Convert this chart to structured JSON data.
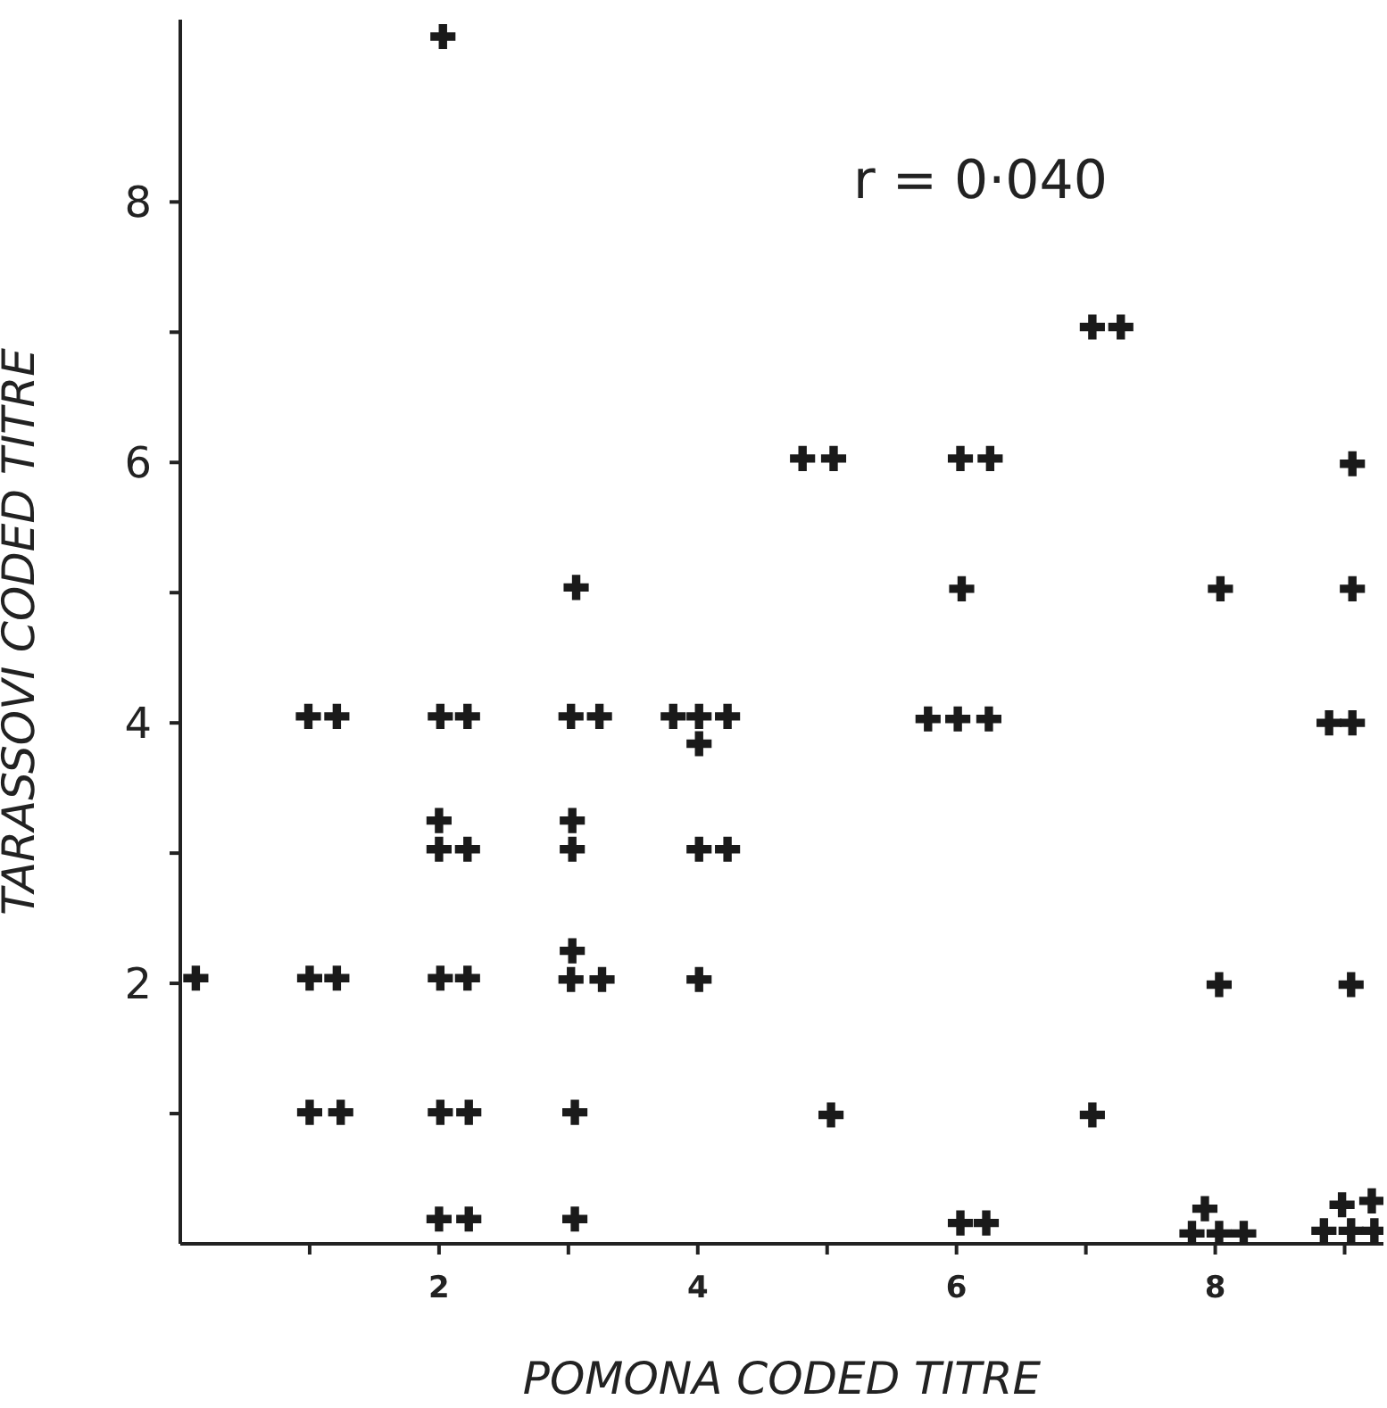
{
  "chart_data": {
    "type": "scatter",
    "xlabel": "POMONA CODED TITRE",
    "ylabel": "TARASSOVI CODED TITRE",
    "annotations": [
      "r = 0·040"
    ],
    "marker": "cross",
    "xlim": [
      0,
      9.3
    ],
    "ylim": [
      0,
      9.4
    ],
    "xticks": [
      {
        "value": 1,
        "label": null
      },
      2,
      {
        "value": 3,
        "label": null
      },
      4,
      {
        "value": 5,
        "label": null
      },
      6,
      {
        "value": 7,
        "label": null
      },
      8,
      {
        "value": 9,
        "label": null
      }
    ],
    "yticks": [
      {
        "value": 1,
        "label": null
      },
      2,
      {
        "value": 3,
        "label": null
      },
      4,
      {
        "value": 5,
        "label": null
      },
      6,
      {
        "value": 7,
        "label": null
      },
      8
    ],
    "series": [
      {
        "color": "#1a1a1a",
        "x": [
          2.03,
          3.06,
          7.05,
          7.27,
          4.81,
          5.05,
          6.03,
          6.26,
          9.06,
          6.04,
          8.04,
          9.06,
          0.99,
          1.21,
          2.01,
          2.22,
          3.02,
          3.24,
          3.81,
          4.01,
          4.23,
          4.01,
          2.0,
          2.22,
          2.0,
          3.03,
          3.03,
          4.01,
          4.23,
          0.12,
          1.0,
          1.21,
          2.01,
          2.22,
          3.02,
          3.26,
          3.03,
          4.01,
          1.0,
          1.24,
          2.01,
          2.23,
          3.05,
          2.0,
          2.23,
          3.05,
          5.78,
          6.01,
          6.25,
          8.88,
          9.06,
          8.03,
          9.05,
          5.03,
          7.05,
          6.03,
          6.23,
          7.92,
          7.82,
          8.03,
          8.22,
          8.98,
          9.21,
          8.84,
          9.05,
          9.23
        ],
        "values": [
          9.27,
          5.04,
          7.04,
          7.04,
          6.03,
          6.03,
          6.03,
          6.03,
          5.99,
          5.03,
          5.03,
          5.03,
          4.05,
          4.05,
          4.05,
          4.05,
          4.05,
          4.05,
          4.05,
          4.05,
          4.05,
          3.84,
          3.03,
          3.03,
          3.25,
          3.03,
          3.25,
          3.03,
          3.03,
          2.04,
          2.04,
          2.04,
          2.04,
          2.04,
          2.03,
          2.03,
          2.25,
          2.03,
          1.01,
          1.01,
          1.01,
          1.01,
          1.01,
          0.19,
          0.19,
          0.19,
          4.03,
          4.03,
          4.03,
          4.0,
          4.0,
          1.99,
          1.99,
          0.99,
          0.99,
          0.16,
          0.16,
          0.27,
          0.08,
          0.08,
          0.08,
          0.3,
          0.33,
          0.1,
          0.1,
          0.1
        ]
      }
    ]
  }
}
